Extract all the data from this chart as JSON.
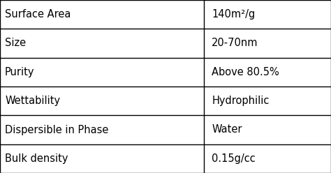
{
  "rows": [
    [
      "Surface Area",
      "140m²/g"
    ],
    [
      "Size",
      "20-70nm"
    ],
    [
      "Purity",
      "Above 80.5%"
    ],
    [
      "Wettability",
      "Hydrophilic"
    ],
    [
      "Dispersible in Phase",
      "Water"
    ],
    [
      "Bulk density",
      "0.15g/cc"
    ]
  ],
  "col_split": 0.615,
  "background_color": "#ffffff",
  "line_color": "#000000",
  "text_color": "#000000",
  "font_size": 10.5,
  "fig_width": 4.74,
  "fig_height": 2.48,
  "dpi": 100
}
